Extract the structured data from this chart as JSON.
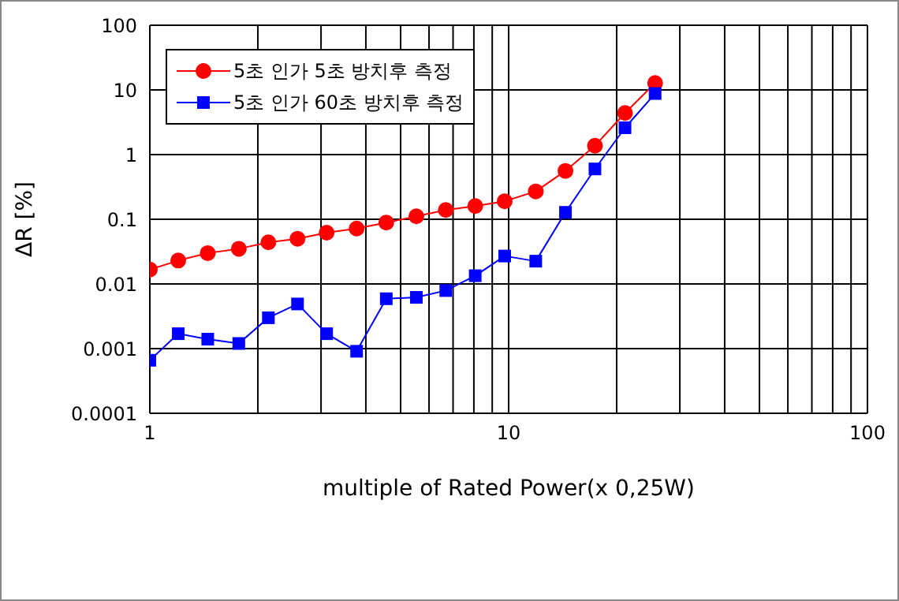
{
  "chart_data": {
    "type": "line",
    "xlabel": "multiple of Rated Power(x 0,25W)",
    "ylabel": "ΔR [%]",
    "log": "xy",
    "grid": true,
    "legend": "top left",
    "line_style": "solid",
    "xlim": [
      1,
      100
    ],
    "xticks": [
      1,
      {
        "value": 2,
        "label": null
      },
      {
        "value": 3,
        "label": null
      },
      {
        "value": 4,
        "label": null
      },
      {
        "value": 5,
        "label": null
      },
      {
        "value": 6,
        "label": null
      },
      {
        "value": 7,
        "label": null
      },
      {
        "value": 8,
        "label": null
      },
      {
        "value": 9,
        "label": null
      },
      10,
      {
        "value": 20,
        "label": null
      },
      {
        "value": 30,
        "label": null
      },
      {
        "value": 40,
        "label": null
      },
      {
        "value": 50,
        "label": null
      },
      {
        "value": 60,
        "label": null
      },
      {
        "value": 70,
        "label": null
      },
      {
        "value": 80,
        "label": null
      },
      {
        "value": 90,
        "label": null
      },
      100
    ],
    "ylim": [
      0.0001,
      100
    ],
    "yticks": [
      0.0001,
      0.001,
      0.01,
      0.1,
      1,
      10,
      100
    ],
    "x": [
      1,
      1.2,
      1.45,
      1.77,
      2.14,
      2.58,
      3.11,
      3.77,
      4.56,
      5.53,
      6.68,
      8.07,
      9.75,
      11.9,
      14.4,
      17.4,
      21.1,
      25.6
    ],
    "series": [
      {
        "name": "5초 인가 5초 방치후 측정",
        "color": "#ff0000",
        "marker": "circle",
        "values": [
          0.0167,
          0.023,
          0.03,
          0.035,
          0.044,
          0.05,
          0.062,
          0.072,
          0.089,
          0.111,
          0.139,
          0.16,
          0.19,
          0.27,
          0.56,
          1.37,
          4.4,
          12.8
        ]
      },
      {
        "name": "5초 인가 60초 방치후 측정",
        "color": "#0000ff",
        "marker": "square",
        "values": [
          0.00066,
          0.0017,
          0.0014,
          0.0012,
          0.003,
          0.0049,
          0.0017,
          0.00091,
          0.0059,
          0.0062,
          0.0079,
          0.0134,
          0.027,
          0.0225,
          0.128,
          0.6,
          2.6,
          8.8
        ]
      }
    ]
  }
}
